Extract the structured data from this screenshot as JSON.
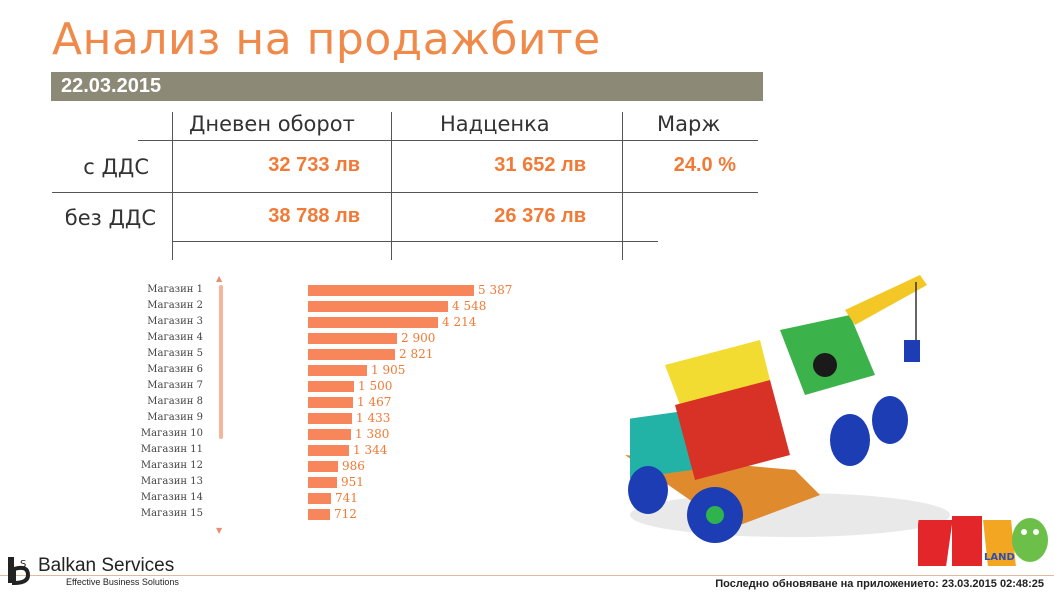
{
  "title": "Анализ на продажбите",
  "date": "22.03.2015",
  "kpi": {
    "columns": [
      "Дневен оборот",
      "Надценка",
      "Марж"
    ],
    "rows": [
      {
        "label": "с ДДС",
        "turnover": "32 733 лв",
        "markup": "31 652 лв",
        "margin": "24.0 %"
      },
      {
        "label": "без ДДС",
        "turnover": "38 788 лв",
        "markup": "26 376 лв",
        "margin": ""
      }
    ]
  },
  "chart_data": {
    "type": "bar",
    "orientation": "horizontal",
    "categories": [
      "Магазин 1",
      "Магазин 2",
      "Магазин 3",
      "Магазин 4",
      "Магазин 5",
      "Магазин 6",
      "Магазин 7",
      "Магазин 8",
      "Магазин 9",
      "Магазин 10",
      "Магазин 11",
      "Магазин 12",
      "Магазин 13",
      "Магазин 14",
      "Магазин 15"
    ],
    "values": [
      5387,
      4548,
      4214,
      2900,
      2821,
      1905,
      1500,
      1467,
      1433,
      1380,
      1344,
      986,
      951,
      741,
      712
    ],
    "value_labels": [
      "5 387",
      "4 548",
      "4 214",
      "2 900",
      "2 821",
      "1 905",
      "1 500",
      "1 467",
      "1 433",
      "1 380",
      "1 344",
      "986",
      "951",
      "741",
      "712"
    ],
    "bar_color": "#f7875a"
  },
  "colors": {
    "accent": "#f07a36",
    "title": "#f08a4b",
    "date_bar": "#8c8a77"
  },
  "footer": {
    "company": "Balkan Services",
    "tagline": "Effective Business Solutions",
    "updated": "Последно обновяване на приложението: 23.03.2015 02:48:25"
  },
  "images": {
    "toy": "toy-crane-truck-illustration",
    "brand": "hippoland-logo"
  }
}
